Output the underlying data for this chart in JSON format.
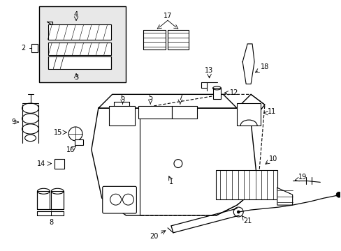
{
  "background_color": "#ffffff",
  "figsize": [
    4.89,
    3.6
  ],
  "dpi": 100
}
